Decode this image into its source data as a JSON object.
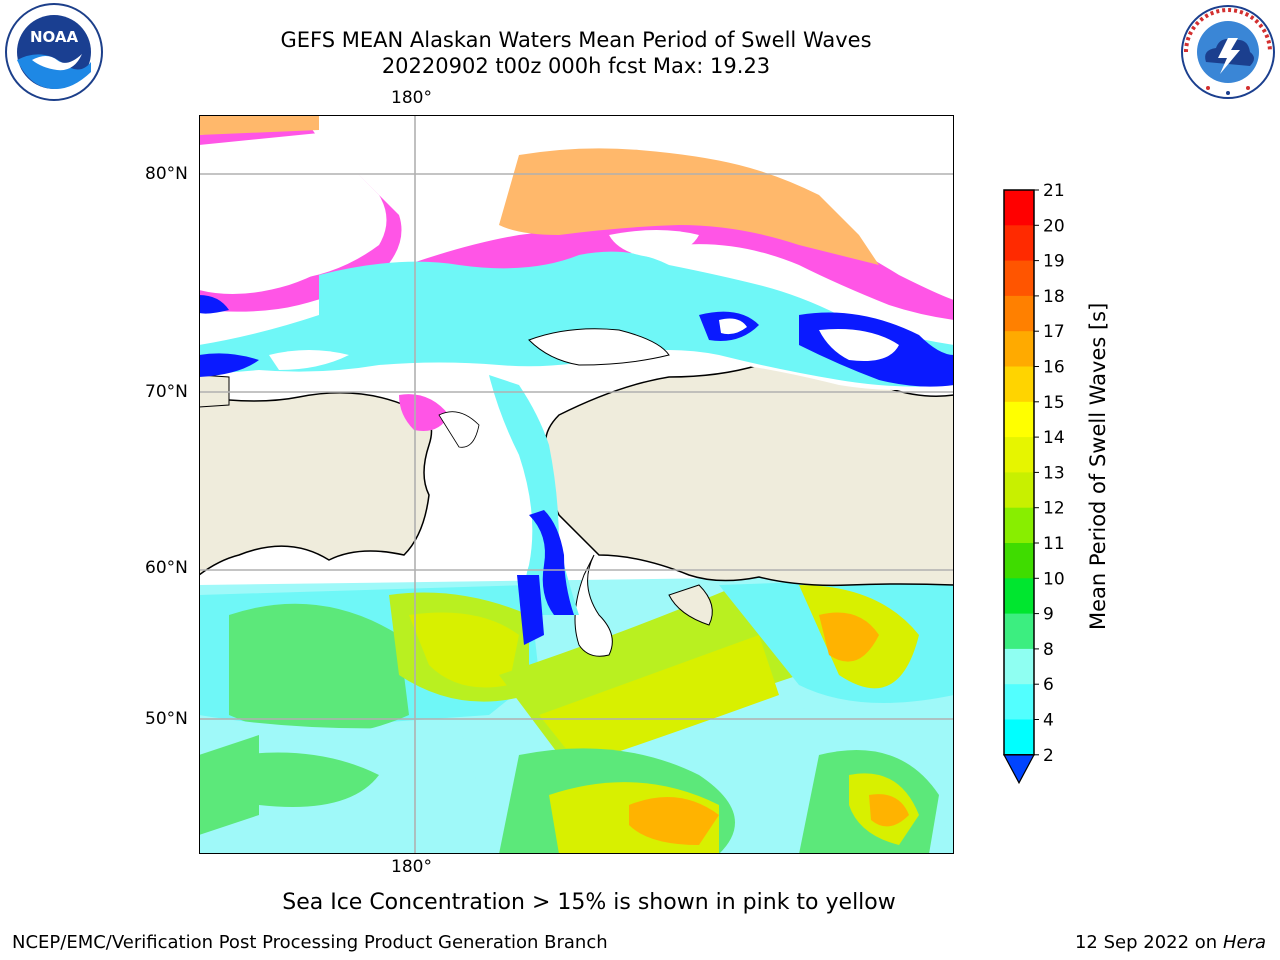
{
  "header": {
    "title_line1": "GEFS MEAN Alaskan Waters Mean Period of Swell Waves",
    "title_line2": "20220902 t00z 000h fcst   Max: 19.23"
  },
  "logos": {
    "left": {
      "name": "noaa-logo",
      "text": "NOAA",
      "ring_text": "NATIONAL OCEANIC AND ATMOSPHERIC ADMINISTRATION · U.S. DEPARTMENT OF COMMERCE"
    },
    "right": {
      "name": "nws-logo",
      "ring_text": "NATIONAL WEATHER SERVICE"
    }
  },
  "map": {
    "lon_top_label": "180°",
    "lon_bottom_label": "180°",
    "lat_labels": [
      "80°N",
      "70°N",
      "60°N",
      "50°N"
    ],
    "colors": {
      "land": "#efecdc",
      "ocean_cyan": "#6ff7f7",
      "ocean_lightcyan": "#9ff9f9",
      "ocean_green": "#5ce87a",
      "ocean_yellow": "#d8f000",
      "ocean_orange": "#ffb300",
      "ice_pink": "#ff55e6",
      "ice_orange": "#ffb86b",
      "deep_blue": "#0a1aff",
      "grid": "#b0b0b0"
    }
  },
  "colorbar": {
    "label": "Mean Period of Swell Waves [s]",
    "ticks": [
      "21",
      "20",
      "19",
      "18",
      "17",
      "16",
      "15",
      "14",
      "13",
      "12",
      "11",
      "10",
      "9",
      "8",
      "6",
      "4",
      "2"
    ],
    "colors": [
      "#ff0000",
      "#ff2a00",
      "#ff5500",
      "#ff8000",
      "#ffaa00",
      "#ffd400",
      "#ffff00",
      "#e6f500",
      "#c8f000",
      "#88ee00",
      "#3fdc00",
      "#00e62f",
      "#3cee80",
      "#8ffff2",
      "#52ffff",
      "#00ffff",
      "#0b90ff",
      "#0044ff"
    ]
  },
  "note": "Sea Ice Concentration > 15% is shown in pink to yellow",
  "footer": {
    "left": "NCEP/EMC/Verification Post Processing Product Generation Branch",
    "right_date": "12 Sep 2022 on",
    "right_host": "Hera"
  }
}
